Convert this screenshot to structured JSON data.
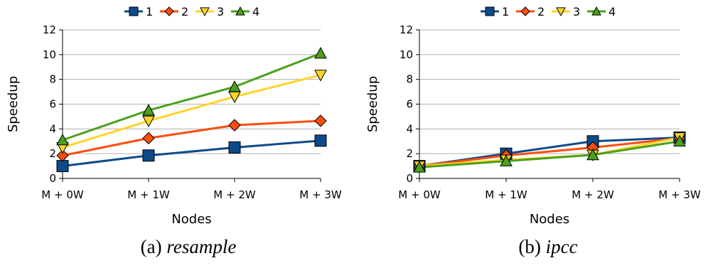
{
  "colors": {
    "series": [
      "#0d4a8a",
      "#ff4d0d",
      "#ffd42a",
      "#4aa01a"
    ],
    "grid": "#b0b0b0",
    "axis": "#000000"
  },
  "chart_data": [
    {
      "type": "line",
      "panel": "a",
      "caption_label": "(a)",
      "caption_name": "resample",
      "xlabel": "Nodes",
      "ylabel": "Speedup",
      "categories": [
        "M + 0W",
        "M + 1W",
        "M + 2W",
        "M + 3W"
      ],
      "ylim": [
        0,
        12
      ],
      "yticks": [
        0,
        2,
        4,
        6,
        8,
        10,
        12
      ],
      "grid": true,
      "legend_position": "top-center",
      "series": [
        {
          "name": "1",
          "marker": "square",
          "values": [
            1.0,
            1.85,
            2.5,
            3.05
          ]
        },
        {
          "name": "2",
          "marker": "diamond",
          "values": [
            1.85,
            3.25,
            4.3,
            4.65
          ]
        },
        {
          "name": "3",
          "marker": "triangle-down",
          "values": [
            2.5,
            4.65,
            6.6,
            8.35
          ]
        },
        {
          "name": "4",
          "marker": "triangle-up",
          "values": [
            3.1,
            5.5,
            7.4,
            10.1
          ]
        }
      ]
    },
    {
      "type": "line",
      "panel": "b",
      "caption_label": "(b)",
      "caption_name": "ipcc",
      "xlabel": "Nodes",
      "ylabel": "Speedup",
      "categories": [
        "M + 0W",
        "M + 1W",
        "M + 2W",
        "M + 3W"
      ],
      "ylim": [
        0,
        12
      ],
      "yticks": [
        0,
        2,
        4,
        6,
        8,
        10,
        12
      ],
      "grid": true,
      "legend_position": "top-center",
      "series": [
        {
          "name": "1",
          "marker": "square",
          "values": [
            1.0,
            2.0,
            3.0,
            3.3
          ]
        },
        {
          "name": "2",
          "marker": "diamond",
          "values": [
            1.0,
            1.85,
            2.5,
            3.25
          ]
        },
        {
          "name": "3",
          "marker": "triangle-down",
          "values": [
            1.0,
            1.5,
            1.9,
            3.3
          ]
        },
        {
          "name": "4",
          "marker": "triangle-up",
          "values": [
            0.9,
            1.4,
            1.9,
            3.0
          ]
        }
      ]
    }
  ]
}
